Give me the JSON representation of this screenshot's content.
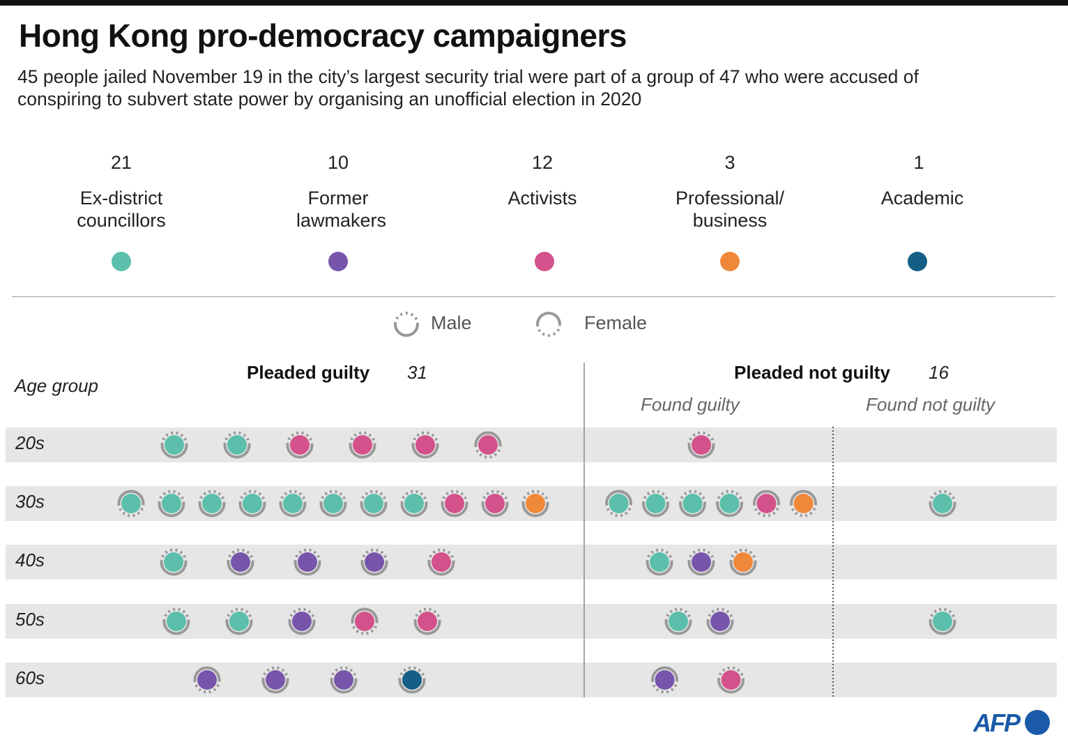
{
  "title": "Hong Kong pro-democracy campaigners",
  "subtitle": "45 people jailed November 19 in the city’s largest security trial were part of a group of 47 who were accused of conspiring to subvert state power by organising an unofficial election in 2020",
  "categories": [
    {
      "key": "E",
      "count": "21",
      "label": "Ex-district councillors",
      "color": "#5bbfab"
    },
    {
      "key": "L",
      "count": "10",
      "label": "Former lawmakers",
      "color": "#7655ab"
    },
    {
      "key": "A",
      "count": "12",
      "label": "Activists",
      "color": "#d3528b"
    },
    {
      "key": "P",
      "count": "3",
      "label": "Professional/ business",
      "color": "#f0883a"
    },
    {
      "key": "C",
      "count": "1",
      "label": "Academic",
      "color": "#155f86"
    }
  ],
  "gender_legend": {
    "male": "Male",
    "female": "Female",
    "ring_color": "#999999"
  },
  "headers": {
    "age_group": "Age group",
    "pleaded_guilty": "Pleaded guilty",
    "pleaded_guilty_count": "31",
    "pleaded_not_guilty": "Pleaded not guilty",
    "pleaded_not_guilty_count": "16",
    "found_guilty": "Found guilty",
    "found_not_guilty": "Found not guilty"
  },
  "logo": "AFP",
  "chart_data": {
    "type": "dot-matrix",
    "rows": [
      "20s",
      "30s",
      "40s",
      "50s",
      "60s"
    ],
    "columns": [
      "Pleaded guilty",
      "Found guilty",
      "Found not guilty"
    ],
    "people": {
      "Pleaded guilty": [
        [
          [
            "M",
            "E"
          ],
          [
            "M",
            "E"
          ],
          [
            "M",
            "A"
          ],
          [
            "M",
            "A"
          ],
          [
            "M",
            "A"
          ],
          [
            "F",
            "A"
          ]
        ],
        [
          [
            "F",
            "E"
          ],
          [
            "M",
            "E"
          ],
          [
            "M",
            "E"
          ],
          [
            "M",
            "E"
          ],
          [
            "M",
            "E"
          ],
          [
            "M",
            "E"
          ],
          [
            "M",
            "E"
          ],
          [
            "M",
            "E"
          ],
          [
            "M",
            "A"
          ],
          [
            "M",
            "A"
          ],
          [
            "M",
            "P"
          ]
        ],
        [
          [
            "M",
            "E"
          ],
          [
            "M",
            "L"
          ],
          [
            "M",
            "L"
          ],
          [
            "M",
            "L"
          ],
          [
            "M",
            "A"
          ]
        ],
        [
          [
            "M",
            "E"
          ],
          [
            "M",
            "E"
          ],
          [
            "M",
            "L"
          ],
          [
            "F",
            "A"
          ],
          [
            "M",
            "A"
          ]
        ],
        [
          [
            "F",
            "L"
          ],
          [
            "M",
            "L"
          ],
          [
            "M",
            "L"
          ],
          [
            "M",
            "C"
          ]
        ]
      ],
      "Found guilty": [
        [
          [
            "M",
            "A"
          ]
        ],
        [
          [
            "F",
            "E"
          ],
          [
            "M",
            "E"
          ],
          [
            "M",
            "E"
          ],
          [
            "M",
            "E"
          ],
          [
            "F",
            "A"
          ],
          [
            "F",
            "P"
          ]
        ],
        [
          [
            "M",
            "E"
          ],
          [
            "M",
            "L"
          ],
          [
            "M",
            "P"
          ]
        ],
        [
          [
            "M",
            "E"
          ],
          [
            "M",
            "L"
          ]
        ],
        [
          [
            "F",
            "L"
          ],
          [
            "M",
            "A"
          ]
        ]
      ],
      "Found not guilty": [
        [],
        [
          [
            "M",
            "E"
          ]
        ],
        [],
        [
          [
            "M",
            "E"
          ]
        ],
        []
      ]
    }
  }
}
